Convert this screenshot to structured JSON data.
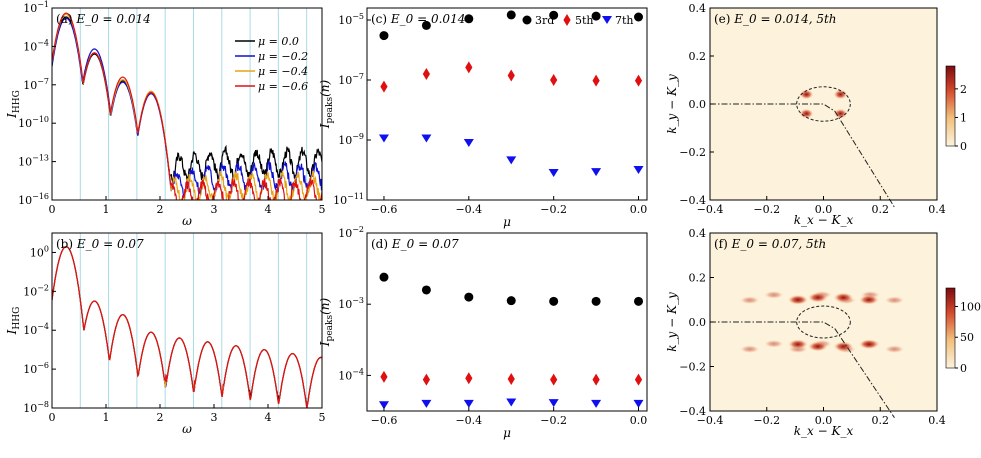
{
  "chart_data": [
    {
      "id": "a",
      "type": "line",
      "panel_label": "(a)",
      "title": "E_0 = 0.014",
      "xlabel": "ω",
      "ylabel": "I_HHG",
      "xlim": [
        0,
        5
      ],
      "ylim_exp": [
        -16,
        -1
      ],
      "yticks_exp": [
        -1,
        -4,
        -7,
        -10,
        -13,
        -16
      ],
      "xticks": [
        0,
        1,
        2,
        3,
        4,
        5
      ],
      "harmonic_lines": [
        0.524,
        1.048,
        1.572,
        2.096,
        2.62,
        3.144,
        3.668,
        4.192,
        4.716
      ],
      "legend": [
        "μ = 0.0",
        "μ = −0.2",
        "μ = −0.4",
        "μ = −0.6"
      ],
      "series": [
        {
          "name": "μ = 0.0",
          "color": "#000000",
          "floor_exp": [
            -14.5,
            -13.1
          ],
          "peaks_exp": [
            -1.7,
            -4.6,
            -6.7,
            -7.6
          ]
        },
        {
          "name": "μ = −0.2",
          "color": "#1010cc",
          "floor_exp": [
            -16.5,
            -14.2
          ],
          "peaks_exp": [
            -1.8,
            -4.2,
            -6.8,
            -7.7
          ]
        },
        {
          "name": "μ = −0.4",
          "color": "#e8a317",
          "floor_exp": [
            -16.5,
            -15.0
          ],
          "peaks_exp": [
            -1.5,
            -4.5,
            -6.6,
            -7.5
          ]
        },
        {
          "name": "μ = −0.6",
          "color": "#e01010",
          "floor_exp": [
            -16.5,
            -15.5
          ],
          "peaks_exp": [
            -1.4,
            -4.5,
            -6.4,
            -7.6
          ]
        }
      ]
    },
    {
      "id": "b",
      "type": "line",
      "panel_label": "(b)",
      "title": "E_0 = 0.07",
      "xlabel": "ω",
      "ylabel": "I_HHG",
      "xlim": [
        0,
        5
      ],
      "ylim_exp": [
        -8,
        1
      ],
      "yticks_exp": [
        0,
        -2,
        -4,
        -6,
        -8
      ],
      "xticks": [
        0,
        1,
        2,
        3,
        4,
        5
      ],
      "harmonic_lines": [
        0.524,
        1.048,
        1.572,
        2.096,
        2.62,
        3.144,
        3.668,
        4.192,
        4.716
      ],
      "series": [
        {
          "name": "μ = 0.0",
          "color": "#000000"
        },
        {
          "name": "μ = −0.2",
          "color": "#1010cc"
        },
        {
          "name": "μ = −0.4",
          "color": "#e8a317"
        },
        {
          "name": "μ = −0.6",
          "color": "#e01010"
        }
      ]
    },
    {
      "id": "c",
      "type": "scatter",
      "panel_label": "(c)",
      "title": "E_0 = 0.014",
      "xlabel": "μ",
      "ylabel": "I_peaks(n)",
      "xlim": [
        -0.64,
        0.02
      ],
      "ylim_exp": [
        -11,
        -4.6
      ],
      "yticks_exp": [
        -5,
        -7,
        -9,
        -11
      ],
      "x": [
        -0.6,
        -0.5,
        -0.4,
        -0.3,
        -0.2,
        -0.1,
        0.0
      ],
      "xticks": [
        -0.6,
        -0.4,
        -0.2,
        0.0
      ],
      "legend": [
        "3rd",
        "5th",
        "7th"
      ],
      "series": [
        {
          "name": "3rd",
          "marker": "circle",
          "color": "#000000",
          "values_exp": [
            -5.52,
            -5.18,
            -4.96,
            -4.83,
            -4.84,
            -4.87,
            -4.9
          ]
        },
        {
          "name": "5th",
          "marker": "diamond",
          "color": "#e01010",
          "values_exp": [
            -7.22,
            -6.8,
            -6.58,
            -6.85,
            -7.0,
            -7.02,
            -7.02
          ]
        },
        {
          "name": "7th",
          "marker": "triangle",
          "color": "#1010ee",
          "values_exp": [
            -8.95,
            -8.95,
            -9.1,
            -9.68,
            -10.1,
            -10.07,
            -10.0
          ]
        }
      ]
    },
    {
      "id": "d",
      "type": "scatter",
      "panel_label": "(d)",
      "title": "E_0 = 0.07",
      "xlabel": "μ",
      "ylabel": "I_peaks(n)",
      "xlim": [
        -0.64,
        0.02
      ],
      "ylim_exp": [
        -4.5,
        -2
      ],
      "yticks_exp": [
        -2,
        -3,
        -4
      ],
      "x": [
        -0.6,
        -0.5,
        -0.4,
        -0.3,
        -0.2,
        -0.1,
        0.0
      ],
      "xticks": [
        -0.6,
        -0.4,
        -0.2,
        0.0
      ],
      "series": [
        {
          "name": "3rd",
          "marker": "circle",
          "color": "#000000",
          "values_exp": [
            -2.62,
            -2.8,
            -2.9,
            -2.95,
            -2.96,
            -2.96,
            -2.96
          ]
        },
        {
          "name": "5th",
          "marker": "diamond",
          "color": "#e01010",
          "values_exp": [
            -4.02,
            -4.06,
            -4.04,
            -4.05,
            -4.06,
            -4.06,
            -4.06
          ]
        },
        {
          "name": "7th",
          "marker": "triangle",
          "color": "#1010ee",
          "values_exp": [
            -4.42,
            -4.4,
            -4.4,
            -4.38,
            -4.39,
            -4.4,
            -4.4
          ]
        }
      ]
    },
    {
      "id": "e",
      "type": "heatmap",
      "panel_label": "(e)",
      "title": "E_0 = 0.014, 5th",
      "xlabel": "k_x − K_x",
      "ylabel": "k_y − K_y",
      "xlim": [
        -0.4,
        0.4
      ],
      "ylim": [
        -0.4,
        0.4
      ],
      "xticks": [
        -0.4,
        -0.2,
        0.0,
        0.2,
        0.4
      ],
      "yticks": [
        0.4,
        0.2,
        0.0,
        -0.2,
        -0.4
      ],
      "colorbar_ticks": [
        2,
        1,
        0
      ],
      "colorbar_max": 2.8,
      "circle_radius": 0.09,
      "hotspots": [
        [
          -0.06,
          0.04
        ],
        [
          0.06,
          0.04
        ],
        [
          -0.06,
          -0.04
        ],
        [
          0.06,
          -0.04
        ]
      ]
    },
    {
      "id": "f",
      "type": "heatmap",
      "panel_label": "(f)",
      "title": "E_0 = 0.07, 5th",
      "xlabel": "k_x − K_x",
      "ylabel": "k_y − K_y",
      "xlim": [
        -0.4,
        0.4
      ],
      "ylim": [
        -0.4,
        0.4
      ],
      "xticks": [
        -0.4,
        -0.2,
        0.0,
        0.2,
        0.4
      ],
      "yticks": [
        0.4,
        0.2,
        0.0,
        -0.2,
        -0.4
      ],
      "colorbar_ticks": [
        100,
        50,
        0
      ],
      "colorbar_max": 130,
      "circle_radius": 0.09,
      "hotspots": [
        [
          -0.02,
          0.11
        ],
        [
          0.07,
          0.11
        ],
        [
          0.16,
          0.1
        ],
        [
          -0.09,
          0.1
        ],
        [
          -0.02,
          -0.11
        ],
        [
          0.07,
          -0.11
        ],
        [
          0.16,
          -0.1
        ],
        [
          -0.09,
          -0.1
        ]
      ]
    }
  ]
}
